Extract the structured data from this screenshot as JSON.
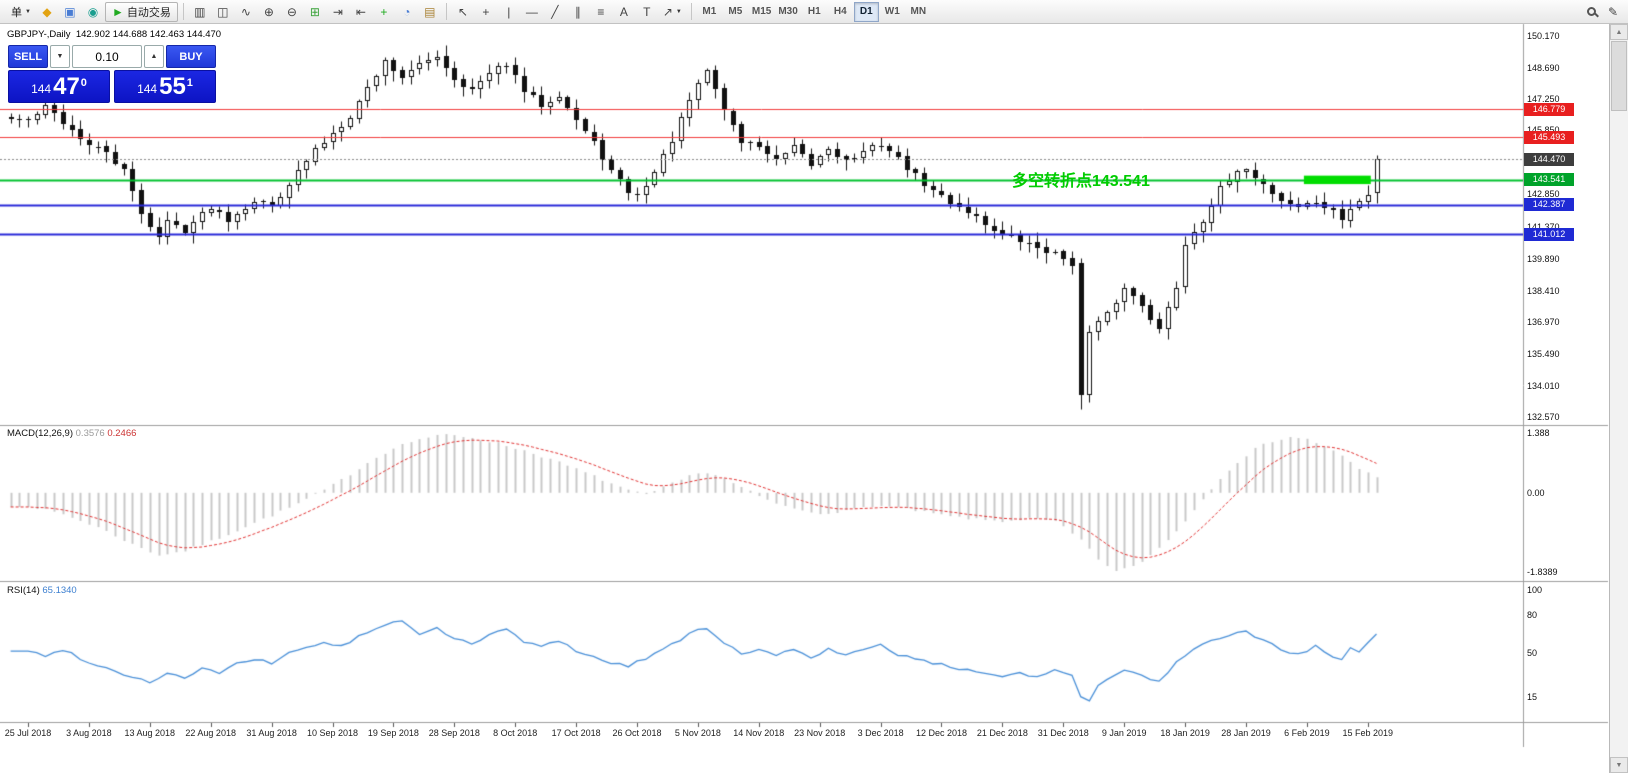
{
  "toolbar": {
    "caret_glyph": "▼",
    "quick_edit_glyph": "✎",
    "scroll_up_glyph": "▲",
    "scroll_down_glyph": "▼",
    "groups": [
      {
        "items": [
          {
            "name": "new-order-button",
            "label": "单",
            "caret": true
          },
          {
            "name": "new-chart-button",
            "glyph": "◆",
            "color": "#e2a312"
          },
          {
            "name": "market-watch-button",
            "glyph": "▣",
            "color": "#4a7dd4"
          },
          {
            "name": "data-window-button",
            "glyph": "◉",
            "color": "#1b9e8f"
          },
          {
            "name": "autotrading-button",
            "glyph": "►",
            "color": "#21aa21",
            "label": "自动交易",
            "framed": true
          }
        ]
      },
      {
        "items": [
          {
            "name": "bar-chart-button",
            "glyph": "▥"
          },
          {
            "name": "candlestick-chart-button",
            "glyph": "◫"
          },
          {
            "name": "line-chart-button",
            "glyph": "∿"
          },
          {
            "name": "zoom-in-button",
            "glyph": "⊕"
          },
          {
            "name": "zoom-out-button",
            "glyph": "⊖"
          },
          {
            "name": "tile-windows-button",
            "glyph": "⊞",
            "color": "#3aa33a"
          },
          {
            "name": "auto-scroll-button",
            "glyph": "⇥"
          },
          {
            "name": "chart-shift-button",
            "glyph": "⇤"
          },
          {
            "name": "indicators-button",
            "glyph": "+",
            "color": "#1faa1f"
          },
          {
            "name": "periods-button",
            "glyph": "◔",
            "color": "#4a7dd4"
          },
          {
            "name": "templates-button",
            "glyph": "▤",
            "color": "#a98235"
          }
        ]
      },
      {
        "items": [
          {
            "name": "cursor-button",
            "glyph": "↖"
          },
          {
            "name": "crosshair-button",
            "glyph": "+"
          },
          {
            "name": "vertical-line-button",
            "glyph": "|"
          },
          {
            "name": "horizontal-line-button",
            "glyph": "—"
          },
          {
            "name": "trendline-button",
            "glyph": "╱"
          },
          {
            "name": "channel-button",
            "glyph": "∥"
          },
          {
            "name": "fibonacci-button",
            "glyph": "≡"
          },
          {
            "name": "text-button",
            "glyph": "A"
          },
          {
            "name": "label-button",
            "glyph": "T"
          },
          {
            "name": "arrows-button",
            "glyph": "↗",
            "caret": true
          }
        ]
      }
    ],
    "timeframes": {
      "items": [
        "M1",
        "M5",
        "M15",
        "M30",
        "H1",
        "H4",
        "D1",
        "W1",
        "MN"
      ],
      "active": "D1"
    }
  },
  "chart": {
    "symbol_title": "GBPJPY-,Daily",
    "ohlc_text": "142.902 144.688 142.463 144.470",
    "trade_panel": {
      "sell_label": "SELL",
      "buy_label": "BUY",
      "volume": "0.10",
      "volume_down_glyph": "▼",
      "volume_up_glyph": "▲",
      "sell_price": {
        "prefix": "144",
        "main": "47",
        "sup": "0"
      },
      "buy_price": {
        "prefix": "144",
        "main": "55",
        "sup": "1"
      }
    },
    "annotation": {
      "text": "多空转折点143.541",
      "color": "#00cc00"
    },
    "levels": [
      {
        "price": 146.779,
        "label": "146.779",
        "line": "#f23b3b",
        "width": 1,
        "dash": false,
        "tag": "#e81f1f"
      },
      {
        "price": 145.493,
        "label": "145.493",
        "line": "#f23b3b",
        "width": 1,
        "dash": false,
        "tag": "#e81f1f"
      },
      {
        "price": 144.47,
        "label": "144.470",
        "line": "#8a8a8a",
        "width": 1,
        "dash": true,
        "tag": "#3d3d3d"
      },
      {
        "price": 143.541,
        "label": "143.541",
        "line": "#00c22e",
        "width": 2,
        "dash": false,
        "tag": "#00a32a"
      },
      {
        "price": 142.387,
        "label": "142.387",
        "line": "#2929d8",
        "width": 2,
        "dash": false,
        "tag": "#1f2ad4"
      },
      {
        "price": 141.012,
        "label": "141.012",
        "line": "#2929d8",
        "width": 2,
        "dash": false,
        "tag": "#1f2ad4"
      }
    ],
    "highlight": {
      "from_bar": 147,
      "to_bar": 154,
      "price_top": 143.72,
      "price_bottom": 143.33,
      "color": "#00dd00"
    },
    "price_axis_ticks": [
      "150.170",
      "148.690",
      "147.250",
      "145.850",
      "144.410",
      "142.850",
      "141.370",
      "139.890",
      "138.410",
      "136.970",
      "135.490",
      "134.010",
      "132.570"
    ],
    "dates": [
      "25 Jul 2018",
      "3 Aug 2018",
      "13 Aug 2018",
      "22 Aug 2018",
      "31 Aug 2018",
      "10 Sep 2018",
      "19 Sep 2018",
      "28 Sep 2018",
      "8 Oct 2018",
      "17 Oct 2018",
      "26 Oct 2018",
      "5 Nov 2018",
      "14 Nov 2018",
      "23 Nov 2018",
      "3 Dec 2018",
      "12 Dec 2018",
      "21 Dec 2018",
      "31 Dec 2018",
      "9 Jan 2019",
      "18 Jan 2019",
      "28 Jan 2019",
      "6 Feb 2019",
      "15 Feb 2019"
    ],
    "macd_panel": {
      "title": "MACD(12,26,9)",
      "value": "0.3576",
      "signal": "0.2466",
      "axis_ticks": [
        "1.388",
        "0.00",
        "-1.8389"
      ]
    },
    "rsi_panel": {
      "title": "RSI(14)",
      "value": "65.1340",
      "axis_ticks": [
        "100",
        "80",
        "50",
        "15"
      ]
    }
  },
  "chart_data": {
    "type": "candlestick",
    "symbol": "GBPJPY",
    "period": "Daily",
    "bars": 156,
    "current_bar": {
      "open": 142.902,
      "high": 144.688,
      "low": 142.463,
      "close": 144.47
    },
    "close_keypoints": [
      [
        0,
        146.3
      ],
      [
        2,
        146.9
      ],
      [
        4,
        146.2
      ],
      [
        7,
        145.1
      ],
      [
        9,
        144.8
      ],
      [
        11,
        143.9
      ],
      [
        13,
        142.0
      ],
      [
        15,
        140.9
      ],
      [
        16,
        141.6
      ],
      [
        18,
        141.2
      ],
      [
        21,
        142.3
      ],
      [
        23,
        141.7
      ],
      [
        26,
        142.6
      ],
      [
        28,
        142.3
      ],
      [
        30,
        143.4
      ],
      [
        33,
        144.9
      ],
      [
        35,
        145.7
      ],
      [
        37,
        146.5
      ],
      [
        39,
        147.8
      ],
      [
        41,
        149.0
      ],
      [
        43,
        148.3
      ],
      [
        45,
        148.8
      ],
      [
        47,
        149.3
      ],
      [
        49,
        148.2
      ],
      [
        51,
        147.7
      ],
      [
        53,
        148.4
      ],
      [
        55,
        148.9
      ],
      [
        57,
        147.6
      ],
      [
        59,
        147.0
      ],
      [
        61,
        147.5
      ],
      [
        63,
        146.3
      ],
      [
        65,
        145.2
      ],
      [
        67,
        143.9
      ],
      [
        69,
        143.0
      ],
      [
        70,
        142.8
      ],
      [
        72,
        143.9
      ],
      [
        74,
        145.4
      ],
      [
        76,
        147.2
      ],
      [
        78,
        148.6
      ],
      [
        80,
        146.8
      ],
      [
        82,
        145.3
      ],
      [
        84,
        145.1
      ],
      [
        86,
        144.4
      ],
      [
        88,
        145.0
      ],
      [
        90,
        144.2
      ],
      [
        92,
        145.0
      ],
      [
        94,
        144.4
      ],
      [
        96,
        144.8
      ],
      [
        98,
        145.2
      ],
      [
        100,
        144.5
      ],
      [
        102,
        143.7
      ],
      [
        104,
        143.0
      ],
      [
        106,
        142.5
      ],
      [
        108,
        142.1
      ],
      [
        110,
        141.5
      ],
      [
        112,
        141.0
      ],
      [
        114,
        140.7
      ],
      [
        116,
        140.4
      ],
      [
        118,
        140.1
      ],
      [
        120,
        139.7
      ],
      [
        121,
        133.6
      ],
      [
        122,
        136.5
      ],
      [
        124,
        137.3
      ],
      [
        126,
        138.5
      ],
      [
        128,
        137.8
      ],
      [
        130,
        136.6
      ],
      [
        132,
        138.6
      ],
      [
        133,
        140.6
      ],
      [
        135,
        141.7
      ],
      [
        137,
        143.1
      ],
      [
        139,
        143.8
      ],
      [
        140,
        144.1
      ],
      [
        142,
        143.3
      ],
      [
        144,
        142.6
      ],
      [
        146,
        142.3
      ],
      [
        148,
        142.5
      ],
      [
        150,
        142.0
      ],
      [
        151,
        141.7
      ],
      [
        152,
        142.2
      ],
      [
        154,
        142.8
      ],
      [
        155,
        144.47
      ]
    ],
    "special_bars": [
      {
        "i": 121,
        "o": 139.7,
        "h": 139.9,
        "l": 132.95,
        "c": 133.6
      },
      {
        "i": 122,
        "o": 133.6,
        "h": 136.8,
        "l": 133.25,
        "c": 136.5
      }
    ],
    "macd": {
      "range": [
        -1.8389,
        1.388
      ],
      "keypoints": [
        [
          0,
          -0.3
        ],
        [
          4,
          -0.5
        ],
        [
          8,
          -0.8
        ],
        [
          12,
          -1.2
        ],
        [
          15,
          -1.45
        ],
        [
          18,
          -1.35
        ],
        [
          22,
          -1.05
        ],
        [
          26,
          -0.7
        ],
        [
          30,
          -0.35
        ],
        [
          33,
          -0.05
        ],
        [
          36,
          0.3
        ],
        [
          39,
          0.7
        ],
        [
          42,
          1.05
        ],
        [
          45,
          1.25
        ],
        [
          48,
          1.35
        ],
        [
          51,
          1.28
        ],
        [
          54,
          1.15
        ],
        [
          57,
          0.98
        ],
        [
          60,
          0.78
        ],
        [
          63,
          0.55
        ],
        [
          66,
          0.3
        ],
        [
          69,
          0.05
        ],
        [
          71,
          -0.05
        ],
        [
          73,
          0.12
        ],
        [
          75,
          0.3
        ],
        [
          77,
          0.48
        ],
        [
          79,
          0.42
        ],
        [
          82,
          0.12
        ],
        [
          85,
          -0.18
        ],
        [
          88,
          -0.38
        ],
        [
          91,
          -0.48
        ],
        [
          94,
          -0.42
        ],
        [
          97,
          -0.3
        ],
        [
          100,
          -0.34
        ],
        [
          103,
          -0.45
        ],
        [
          106,
          -0.55
        ],
        [
          109,
          -0.62
        ],
        [
          112,
          -0.66
        ],
        [
          115,
          -0.6
        ],
        [
          118,
          -0.66
        ],
        [
          121,
          -1.1
        ],
        [
          123,
          -1.55
        ],
        [
          125,
          -1.82
        ],
        [
          127,
          -1.72
        ],
        [
          129,
          -1.45
        ],
        [
          131,
          -1.1
        ],
        [
          133,
          -0.65
        ],
        [
          135,
          -0.15
        ],
        [
          137,
          0.35
        ],
        [
          139,
          0.72
        ],
        [
          141,
          1.02
        ],
        [
          143,
          1.2
        ],
        [
          145,
          1.3
        ],
        [
          147,
          1.24
        ],
        [
          149,
          1.08
        ],
        [
          151,
          0.85
        ],
        [
          153,
          0.55
        ],
        [
          155,
          0.36
        ]
      ]
    },
    "rsi": {
      "range": [
        0,
        100
      ],
      "keypoints": [
        [
          0,
          52
        ],
        [
          2,
          47
        ],
        [
          4,
          53
        ],
        [
          6,
          46
        ],
        [
          8,
          40
        ],
        [
          10,
          36
        ],
        [
          12,
          31
        ],
        [
          14,
          27
        ],
        [
          16,
          34
        ],
        [
          18,
          30
        ],
        [
          20,
          38
        ],
        [
          22,
          34
        ],
        [
          24,
          41
        ],
        [
          26,
          45
        ],
        [
          28,
          42
        ],
        [
          30,
          50
        ],
        [
          32,
          55
        ],
        [
          34,
          58
        ],
        [
          36,
          55
        ],
        [
          38,
          63
        ],
        [
          40,
          69
        ],
        [
          42,
          74
        ],
        [
          43,
          76
        ],
        [
          45,
          64
        ],
        [
          47,
          71
        ],
        [
          49,
          61
        ],
        [
          51,
          57
        ],
        [
          53,
          64
        ],
        [
          55,
          69
        ],
        [
          57,
          59
        ],
        [
          59,
          55
        ],
        [
          61,
          60
        ],
        [
          63,
          52
        ],
        [
          65,
          47
        ],
        [
          67,
          42
        ],
        [
          69,
          40
        ],
        [
          71,
          46
        ],
        [
          73,
          53
        ],
        [
          75,
          61
        ],
        [
          77,
          68
        ],
        [
          78,
          70
        ],
        [
          80,
          57
        ],
        [
          82,
          50
        ],
        [
          84,
          53
        ],
        [
          86,
          48
        ],
        [
          88,
          53
        ],
        [
          90,
          47
        ],
        [
          92,
          53
        ],
        [
          94,
          48
        ],
        [
          96,
          52
        ],
        [
          98,
          56
        ],
        [
          100,
          49
        ],
        [
          102,
          45
        ],
        [
          104,
          42
        ],
        [
          106,
          39
        ],
        [
          108,
          37
        ],
        [
          110,
          34
        ],
        [
          112,
          32
        ],
        [
          114,
          34
        ],
        [
          116,
          31
        ],
        [
          118,
          36
        ],
        [
          120,
          32
        ],
        [
          121,
          16
        ],
        [
          122,
          13
        ],
        [
          123,
          23
        ],
        [
          124,
          29
        ],
        [
          126,
          36
        ],
        [
          128,
          32
        ],
        [
          130,
          27
        ],
        [
          132,
          42
        ],
        [
          134,
          52
        ],
        [
          136,
          60
        ],
        [
          138,
          64
        ],
        [
          140,
          67
        ],
        [
          142,
          60
        ],
        [
          144,
          53
        ],
        [
          146,
          49
        ],
        [
          148,
          55
        ],
        [
          150,
          47
        ],
        [
          151,
          44
        ],
        [
          152,
          53
        ],
        [
          153,
          50
        ],
        [
          154,
          57
        ],
        [
          155,
          65.13
        ]
      ]
    }
  }
}
